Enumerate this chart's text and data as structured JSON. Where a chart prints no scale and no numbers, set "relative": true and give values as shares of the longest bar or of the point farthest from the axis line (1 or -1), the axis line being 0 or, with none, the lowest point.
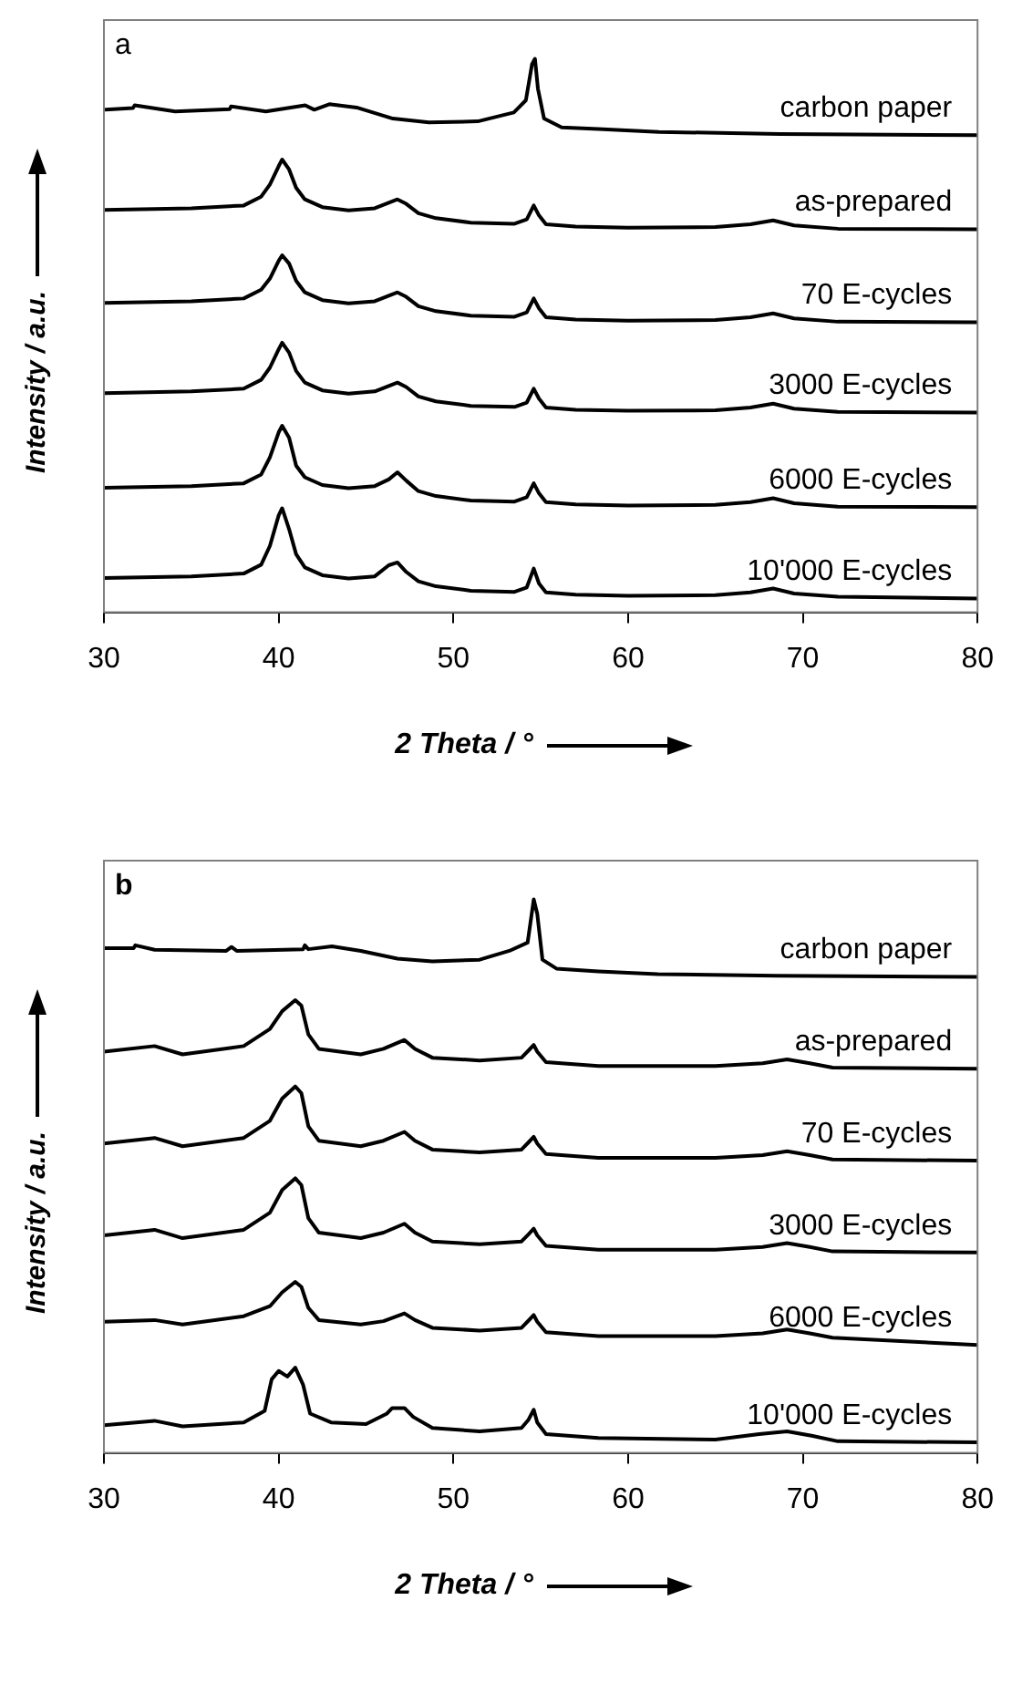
{
  "chart_data": [
    {
      "type": "line",
      "title": "a",
      "xlabel": "2 Theta  /  °",
      "ylabel": "Intensity  /  a.u.",
      "relative": true,
      "legend": false,
      "xlim": [
        30,
        80
      ],
      "xticks": [
        30,
        40,
        50,
        60,
        70,
        80
      ],
      "x": [
        30,
        35,
        38,
        39,
        39.5,
        40,
        40.2,
        40.6,
        41,
        41.5,
        42.5,
        44,
        45.5,
        46.3,
        46.8,
        47.3,
        48,
        49,
        51,
        53.5,
        54.2,
        54.6,
        54.9,
        55.3,
        57,
        60,
        65,
        67,
        68.3,
        69.5,
        72,
        80
      ],
      "series": [
        {
          "name": "carbon paper",
          "color": "#000000",
          "x": [
            30.1,
            31.66,
            31.76,
            34.08,
            37.2,
            37.27,
            39.27,
            41.52,
            42.04,
            42.9,
            44.46,
            46.54,
            48.6,
            51.4,
            53.46,
            54.15,
            54.5,
            54.67,
            54.84,
            55.19,
            56.2,
            58.3,
            61.76,
            68.7,
            80
          ],
          "values": [
            0.908,
            0.911,
            0.916,
            0.905,
            0.909,
            0.914,
            0.905,
            0.916,
            0.908,
            0.918,
            0.912,
            0.892,
            0.885,
            0.887,
            0.903,
            0.925,
            0.99,
            1.0,
            0.946,
            0.892,
            0.876,
            0.873,
            0.868,
            0.864,
            0.862
          ]
        },
        {
          "name": "as-prepared",
          "color": "#000000",
          "values": [
            0.727,
            0.73,
            0.735,
            0.751,
            0.773,
            0.806,
            0.818,
            0.8,
            0.767,
            0.746,
            0.732,
            0.726,
            0.73,
            0.74,
            0.746,
            0.738,
            0.721,
            0.712,
            0.704,
            0.702,
            0.71,
            0.735,
            0.717,
            0.701,
            0.697,
            0.695,
            0.696,
            0.701,
            0.708,
            0.699,
            0.693,
            0.692
          ]
        },
        {
          "name": "70 E-cycles",
          "color": "#000000",
          "values": [
            0.559,
            0.562,
            0.567,
            0.583,
            0.603,
            0.635,
            0.645,
            0.63,
            0.599,
            0.578,
            0.564,
            0.558,
            0.562,
            0.572,
            0.578,
            0.57,
            0.553,
            0.544,
            0.536,
            0.534,
            0.542,
            0.567,
            0.549,
            0.533,
            0.529,
            0.527,
            0.528,
            0.533,
            0.54,
            0.531,
            0.525,
            0.524
          ]
        },
        {
          "name": "3000 E-cycles",
          "color": "#000000",
          "values": [
            0.396,
            0.399,
            0.404,
            0.42,
            0.442,
            0.475,
            0.487,
            0.469,
            0.436,
            0.415,
            0.401,
            0.395,
            0.399,
            0.409,
            0.415,
            0.407,
            0.39,
            0.381,
            0.373,
            0.371,
            0.379,
            0.404,
            0.386,
            0.37,
            0.366,
            0.364,
            0.365,
            0.37,
            0.377,
            0.368,
            0.362,
            0.361
          ]
        },
        {
          "name": "6000 E-cycles",
          "color": "#000000",
          "values": [
            0.225,
            0.228,
            0.233,
            0.249,
            0.28,
            0.325,
            0.337,
            0.315,
            0.265,
            0.244,
            0.23,
            0.224,
            0.228,
            0.24,
            0.253,
            0.238,
            0.219,
            0.21,
            0.202,
            0.2,
            0.208,
            0.233,
            0.215,
            0.199,
            0.195,
            0.193,
            0.194,
            0.199,
            0.206,
            0.197,
            0.191,
            0.19
          ]
        },
        {
          "name": "10'000 E-cycles",
          "color": "#000000",
          "values": [
            0.062,
            0.065,
            0.07,
            0.086,
            0.12,
            0.175,
            0.188,
            0.15,
            0.105,
            0.081,
            0.067,
            0.061,
            0.065,
            0.085,
            0.09,
            0.073,
            0.056,
            0.047,
            0.039,
            0.037,
            0.045,
            0.079,
            0.052,
            0.036,
            0.032,
            0.03,
            0.031,
            0.036,
            0.043,
            0.034,
            0.028,
            0.025
          ]
        }
      ]
    },
    {
      "type": "line",
      "title": "b",
      "xlabel": "2 Theta / °",
      "ylabel": "Intensity  /  a.u.",
      "relative": true,
      "legend": false,
      "xlim": [
        30,
        80
      ],
      "xticks": [
        30,
        40,
        50,
        60,
        70,
        80
      ],
      "x": [
        30,
        32.9,
        34.5,
        38,
        39.5,
        40.2,
        40.95,
        41.3,
        41.7,
        42.3,
        44.7,
        46,
        47.2,
        47.8,
        48.8,
        51.5,
        53.9,
        54.3,
        54.6,
        54.8,
        55.3,
        58.3,
        65,
        67.7,
        69.1,
        70.4,
        71.7,
        80
      ],
      "series": [
        {
          "name": "carbon paper",
          "color": "#000000",
          "x": [
            30,
            31.7,
            31.8,
            32.9,
            37.0,
            37.3,
            37.6,
            41.4,
            41.5,
            41.7,
            43.05,
            44.7,
            46.8,
            48.8,
            51.5,
            53.2,
            54.25,
            54.6,
            54.8,
            55.1,
            55.9,
            58.3,
            61.7,
            68.5,
            80
          ],
          "values": [
            0.912,
            0.912,
            0.917,
            0.909,
            0.907,
            0.914,
            0.907,
            0.91,
            0.917,
            0.91,
            0.915,
            0.907,
            0.893,
            0.888,
            0.891,
            0.907,
            0.922,
            1.0,
            0.974,
            0.891,
            0.875,
            0.87,
            0.865,
            0.862,
            0.86
          ]
        },
        {
          "name": "as-prepared",
          "color": "#000000",
          "values": [
            0.725,
            0.735,
            0.72,
            0.735,
            0.766,
            0.798,
            0.818,
            0.808,
            0.756,
            0.73,
            0.72,
            0.73,
            0.746,
            0.73,
            0.714,
            0.709,
            0.714,
            0.727,
            0.737,
            0.725,
            0.706,
            0.699,
            0.699,
            0.704,
            0.711,
            0.704,
            0.696,
            0.694
          ]
        },
        {
          "name": "70 E-cycles",
          "color": "#000000",
          "values": [
            0.559,
            0.569,
            0.554,
            0.569,
            0.6,
            0.64,
            0.662,
            0.65,
            0.59,
            0.564,
            0.554,
            0.564,
            0.58,
            0.564,
            0.548,
            0.543,
            0.548,
            0.561,
            0.571,
            0.559,
            0.54,
            0.533,
            0.533,
            0.538,
            0.545,
            0.538,
            0.53,
            0.528
          ]
        },
        {
          "name": "3000 E-cycles",
          "color": "#000000",
          "values": [
            0.393,
            0.403,
            0.388,
            0.403,
            0.434,
            0.475,
            0.496,
            0.484,
            0.424,
            0.398,
            0.388,
            0.398,
            0.414,
            0.398,
            0.382,
            0.377,
            0.382,
            0.395,
            0.405,
            0.393,
            0.374,
            0.367,
            0.367,
            0.372,
            0.379,
            0.372,
            0.364,
            0.362
          ]
        },
        {
          "name": "6000 E-cycles",
          "color": "#000000",
          "values": [
            0.237,
            0.24,
            0.232,
            0.247,
            0.265,
            0.29,
            0.309,
            0.3,
            0.262,
            0.24,
            0.232,
            0.238,
            0.252,
            0.24,
            0.226,
            0.221,
            0.226,
            0.239,
            0.249,
            0.237,
            0.218,
            0.211,
            0.211,
            0.216,
            0.223,
            0.216,
            0.208,
            0.195
          ]
        },
        {
          "name": "10'000 E-cycles",
          "color": "#000000",
          "x": [
            30,
            32.9,
            34.5,
            38,
            39.2,
            39.6,
            40.0,
            40.5,
            40.95,
            41.4,
            41.8,
            43,
            45,
            46.2,
            46.5,
            47.2,
            47.7,
            48.8,
            51.5,
            53.9,
            54.3,
            54.6,
            54.8,
            55.3,
            58.3,
            65,
            67.5,
            69.1,
            70.5,
            72,
            80
          ],
          "values": [
            0.05,
            0.058,
            0.048,
            0.055,
            0.076,
            0.133,
            0.148,
            0.138,
            0.154,
            0.123,
            0.071,
            0.055,
            0.052,
            0.071,
            0.081,
            0.081,
            0.065,
            0.045,
            0.039,
            0.045,
            0.06,
            0.078,
            0.055,
            0.034,
            0.027,
            0.024,
            0.034,
            0.039,
            0.031,
            0.021,
            0.019
          ]
        }
      ]
    }
  ]
}
